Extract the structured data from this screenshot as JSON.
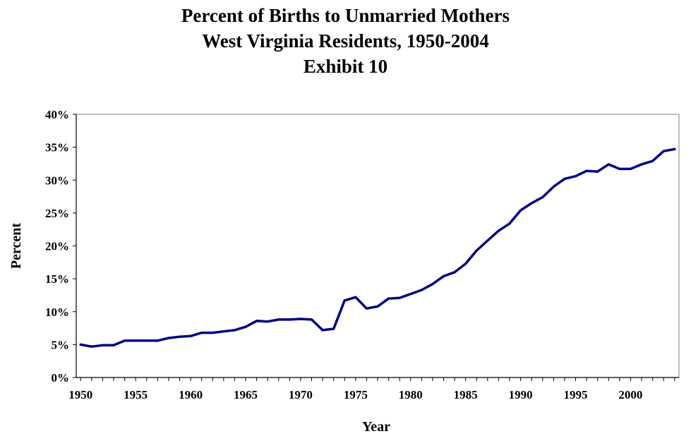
{
  "chart_data": {
    "type": "line",
    "title": "Percent of Births to Unmarried Mothers",
    "subtitle": "West Virginia Residents, 1950-2004",
    "exhibit": "Exhibit 10",
    "xlabel": "Year",
    "ylabel": "Percent",
    "xlim": [
      1950,
      2004
    ],
    "ylim": [
      0,
      40
    ],
    "x_ticks": [
      1950,
      1955,
      1960,
      1965,
      1970,
      1975,
      1980,
      1985,
      1990,
      1995,
      2000
    ],
    "y_ticks": [
      "0%",
      "5%",
      "10%",
      "15%",
      "20%",
      "25%",
      "30%",
      "35%",
      "40%"
    ],
    "grid": false,
    "legend": "none",
    "line_color": "#000080",
    "x": [
      1950,
      1951,
      1952,
      1953,
      1954,
      1955,
      1956,
      1957,
      1958,
      1959,
      1960,
      1961,
      1962,
      1963,
      1964,
      1965,
      1966,
      1967,
      1968,
      1969,
      1970,
      1971,
      1972,
      1973,
      1974,
      1975,
      1976,
      1977,
      1978,
      1979,
      1980,
      1981,
      1982,
      1983,
      1984,
      1985,
      1986,
      1987,
      1988,
      1989,
      1990,
      1991,
      1992,
      1993,
      1994,
      1995,
      1996,
      1997,
      1998,
      1999,
      2000,
      2001,
      2002,
      2003,
      2004
    ],
    "series": [
      {
        "values": [
          5.0,
          4.7,
          4.9,
          4.9,
          5.6,
          5.6,
          5.6,
          5.6,
          6.0,
          6.2,
          6.3,
          6.8,
          6.8,
          7.0,
          7.2,
          7.7,
          8.6,
          8.5,
          8.8,
          8.8,
          8.9,
          8.8,
          7.2,
          7.4,
          11.7,
          12.2,
          10.5,
          10.8,
          12.0,
          12.1,
          12.7,
          13.3,
          14.2,
          15.4,
          16.0,
          17.3,
          19.3,
          20.8,
          22.3,
          23.4,
          25.4,
          26.5,
          27.4,
          29.0,
          30.2,
          30.6,
          31.4,
          31.3,
          32.4,
          31.7,
          31.7,
          32.4,
          32.9,
          34.4,
          34.7
        ]
      }
    ]
  }
}
